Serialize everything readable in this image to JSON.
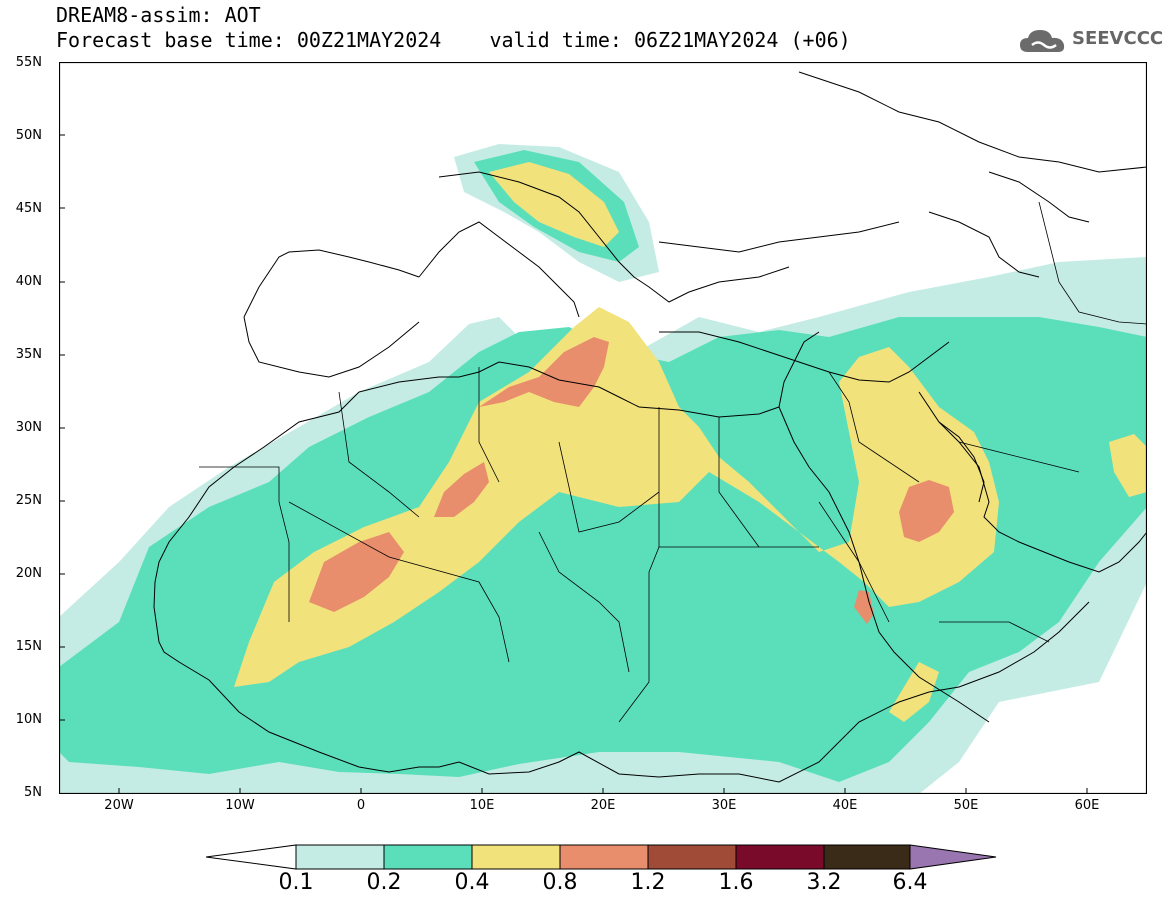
{
  "header": {
    "line1": "DREAM8-assim: AOT",
    "line2": "Forecast base time: 00Z21MAY2024    valid time: 06Z21MAY2024 (+06)"
  },
  "brand": {
    "name": "SEEVCCC",
    "icon": "cloud-logo-icon"
  },
  "map": {
    "lat_range": [
      5,
      55
    ],
    "lon_range": [
      -25,
      65
    ],
    "lat_ticks": [
      "55N",
      "50N",
      "45N",
      "40N",
      "35N",
      "30N",
      "25N",
      "20N",
      "15N",
      "10N",
      "5N"
    ],
    "lon_ticks": [
      "20W",
      "10W",
      "0",
      "10E",
      "20E",
      "30E",
      "40E",
      "50E",
      "60E"
    ],
    "field": "AOT"
  },
  "colorbar": {
    "labels": [
      "0.1",
      "0.2",
      "0.4",
      "0.8",
      "1.2",
      "1.6",
      "3.2",
      "6.4"
    ],
    "colors": [
      "#ffffff",
      "#c4ece4",
      "#5bdfba",
      "#f2e27c",
      "#e88e6c",
      "#a04a38",
      "#7a0a2a",
      "#3a2a18",
      "#9a76b0"
    ]
  },
  "palette": {
    "c1": "#c4ece4",
    "c2": "#5bdfba",
    "c3": "#f2e27c",
    "c4": "#e88e6c"
  }
}
